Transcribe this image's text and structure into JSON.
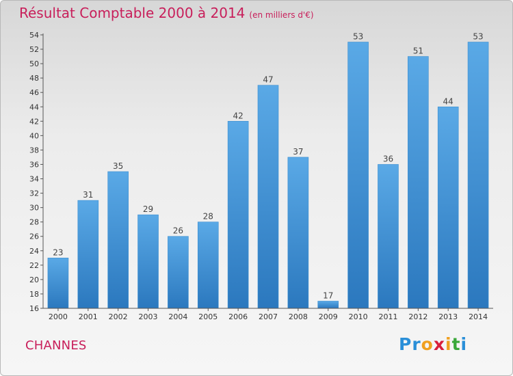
{
  "header": {
    "title": "Résultat Comptable 2000 à 2014",
    "subtitle": "(en milliers d'€)"
  },
  "footer": {
    "city": "CHANNES",
    "logo_letters": [
      {
        "ch": "P",
        "color": "#2a8fd8"
      },
      {
        "ch": "r",
        "color": "#2a8fd8"
      },
      {
        "ch": "o",
        "color": "#f0a020"
      },
      {
        "ch": "x",
        "color": "#d81e3c"
      },
      {
        "ch": "i",
        "color": "#f0a020"
      },
      {
        "ch": "t",
        "color": "#3aa83a"
      },
      {
        "ch": "i",
        "color": "#2a8fd8"
      }
    ]
  },
  "chart_data": {
    "type": "bar",
    "categories": [
      "2000",
      "2001",
      "2002",
      "2003",
      "2004",
      "2005",
      "2006",
      "2007",
      "2008",
      "2009",
      "2010",
      "2011",
      "2012",
      "2013",
      "2014"
    ],
    "values": [
      23,
      31,
      35,
      29,
      26,
      28,
      42,
      47,
      37,
      17,
      53,
      36,
      51,
      44,
      53
    ],
    "ylim": [
      16,
      54
    ],
    "ytick_step": 2,
    "grid": false,
    "bar_color_top": "#5aa9e6",
    "bar_color_bottom": "#2b78be"
  }
}
